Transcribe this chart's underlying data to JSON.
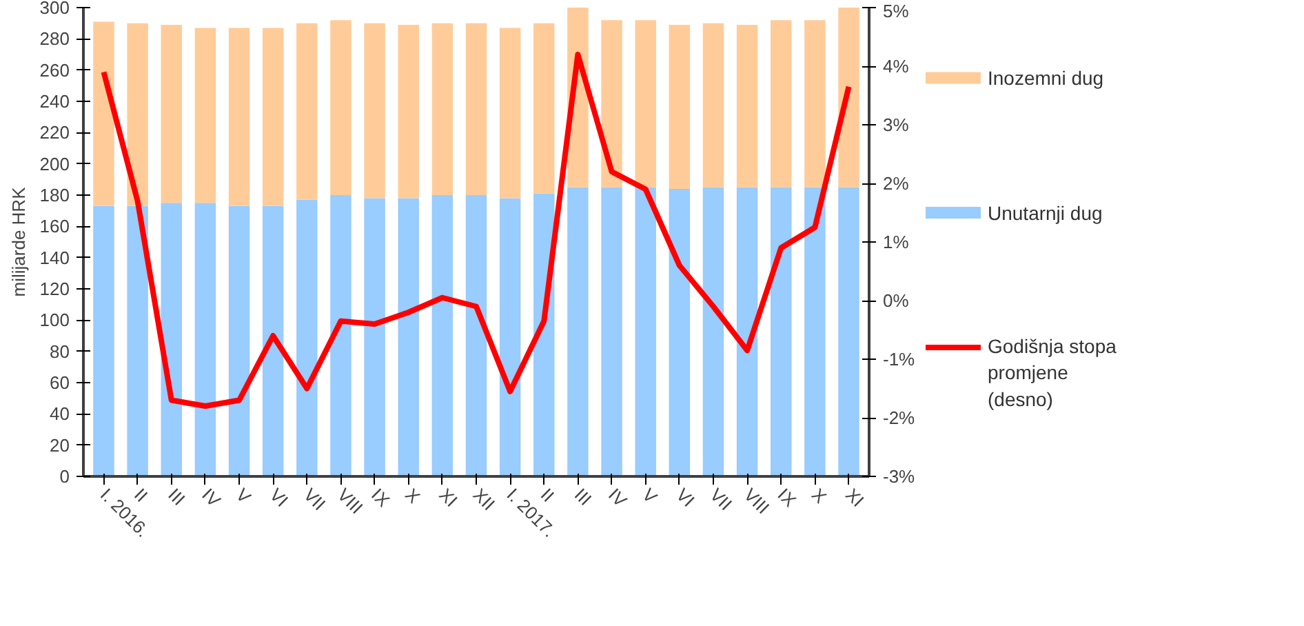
{
  "chart_data": {
    "type": "bar",
    "stacked": true,
    "ylabel": "milijarde HRK",
    "categories": [
      "I. 2016.",
      "II",
      "III",
      "IV",
      "V",
      "VI",
      "VII",
      "VIII",
      "IX",
      "X",
      "XI",
      "XII",
      "I. 2017.",
      "II",
      "III",
      "IV",
      "V",
      "VI",
      "VII",
      "VIII",
      "IX",
      "X",
      "XI"
    ],
    "series": [
      {
        "name": "Unutarnji dug",
        "color": "#99ccff",
        "values": [
          173,
          173,
          175,
          175,
          173,
          173,
          177,
          180,
          178,
          178,
          180,
          180,
          178,
          181,
          185,
          185,
          185,
          184,
          185,
          185,
          185,
          185,
          185
        ]
      },
      {
        "name": "Inozemni dug",
        "color": "#ffcc99",
        "values": [
          118,
          117,
          114,
          112,
          114,
          114,
          113,
          112,
          112,
          111,
          110,
          110,
          109,
          109,
          115,
          107,
          107,
          105,
          105,
          104,
          107,
          107,
          116
        ]
      },
      {
        "name": "Godišnja stopa promjene (desno)",
        "type": "line",
        "axis": "y2",
        "color": "#ff0000",
        "values": [
          3.9,
          1.7,
          -1.7,
          -1.8,
          -1.7,
          -0.6,
          -1.5,
          -0.35,
          -0.4,
          -0.2,
          0.05,
          -0.1,
          -1.55,
          -0.35,
          4.2,
          2.2,
          1.9,
          0.6,
          -0.1,
          -0.85,
          0.9,
          1.25,
          3.65
        ]
      }
    ],
    "ylim": [
      0,
      300
    ],
    "yticks": [
      0,
      20,
      40,
      60,
      80,
      100,
      120,
      140,
      160,
      180,
      200,
      220,
      240,
      260,
      280,
      300
    ],
    "y2lim": [
      -3,
      5
    ],
    "y2ticks": [
      {
        "value": -3,
        "label": "-3%"
      },
      {
        "value": -2,
        "label": "-2%"
      },
      {
        "value": -1,
        "label": "-1%"
      },
      {
        "value": 0,
        "label": "0%"
      },
      {
        "value": 1,
        "label": "1%"
      },
      {
        "value": 2,
        "label": "2%"
      },
      {
        "value": 3,
        "label": "3%"
      },
      {
        "value": 4,
        "label": "4%"
      },
      {
        "value": 5,
        "label": "5%"
      }
    ],
    "legend": "right",
    "grid": false
  }
}
